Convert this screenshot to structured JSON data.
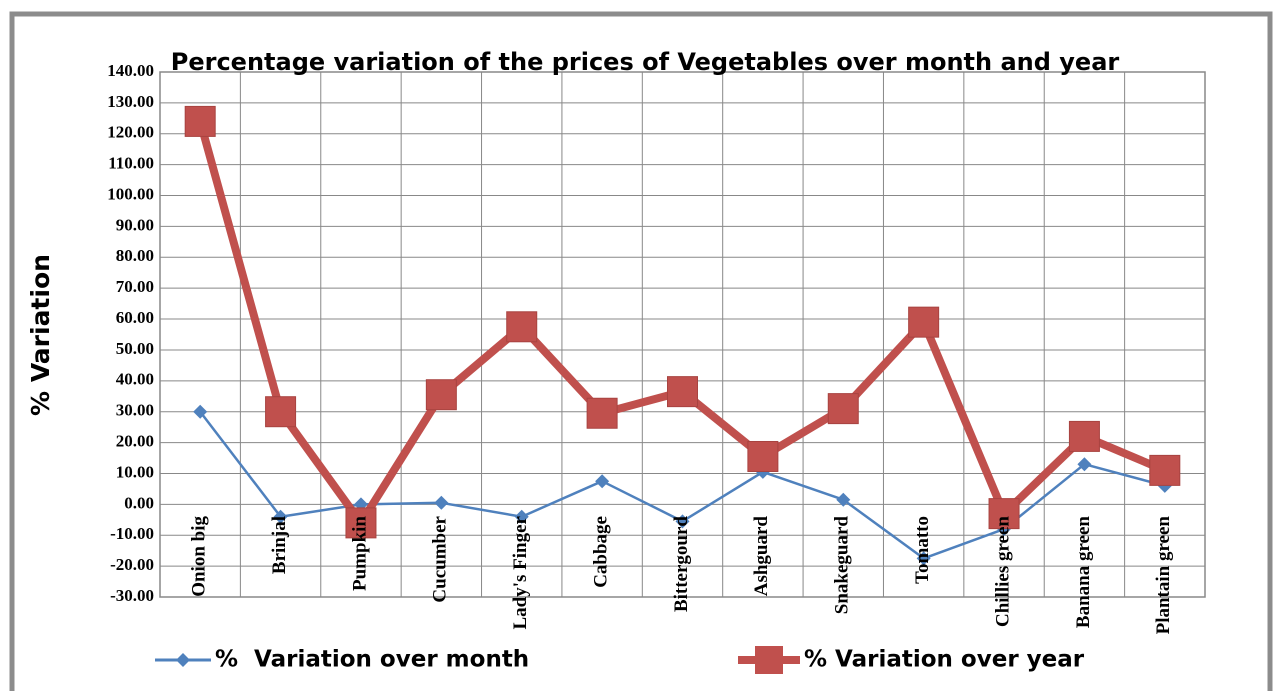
{
  "chart_data": {
    "type": "line",
    "title": "Percentage variation of the prices of Vegetables over month and year",
    "ylabel": "% Variation",
    "categories": [
      "Onion big",
      "Brinjal",
      "Pumpkin",
      "Cucumber",
      "Lady's Finger",
      "Cabbage",
      "Bittergourd",
      "Ashguard",
      "Snakeguard",
      "Tomatto",
      "Chillies green",
      "Banana green",
      "Plantain green"
    ],
    "series": [
      {
        "name": "%  Variation over month",
        "color": "#4f81bd",
        "values": [
          30,
          -4,
          0,
          0.5,
          -4,
          7.5,
          -5.5,
          10.5,
          1.5,
          -17.5,
          -8,
          13,
          6
        ]
      },
      {
        "name": "% Variation over year",
        "color": "#c0504d",
        "values": [
          124,
          30,
          -6,
          35.5,
          57.5,
          29.5,
          36.5,
          15.5,
          31,
          59,
          -3,
          22,
          11
        ]
      }
    ],
    "ylim": [
      -30,
      140
    ],
    "yticks": [
      {
        "value": -30,
        "label": "-30.00"
      },
      {
        "value": -20,
        "label": "-20.00"
      },
      {
        "value": -10,
        "label": "-10.00"
      },
      {
        "value": 0,
        "label": "0.00"
      },
      {
        "value": 10,
        "label": "10.00"
      },
      {
        "value": 20,
        "label": "20.00"
      },
      {
        "value": 30,
        "label": "30.00"
      },
      {
        "value": 40,
        "label": "40.00"
      },
      {
        "value": 50,
        "label": "50.00"
      },
      {
        "value": 60,
        "label": "60.00"
      },
      {
        "value": 70,
        "label": "70.00"
      },
      {
        "value": 80,
        "label": "80.00"
      },
      {
        "value": 90,
        "label": "90.00"
      },
      {
        "value": 100,
        "label": "100.00"
      },
      {
        "value": 110,
        "label": "110.00"
      },
      {
        "value": 120,
        "label": "120.00"
      },
      {
        "value": 130,
        "label": "130.00"
      },
      {
        "value": 140,
        "label": "140.00"
      }
    ],
    "grid": true
  }
}
